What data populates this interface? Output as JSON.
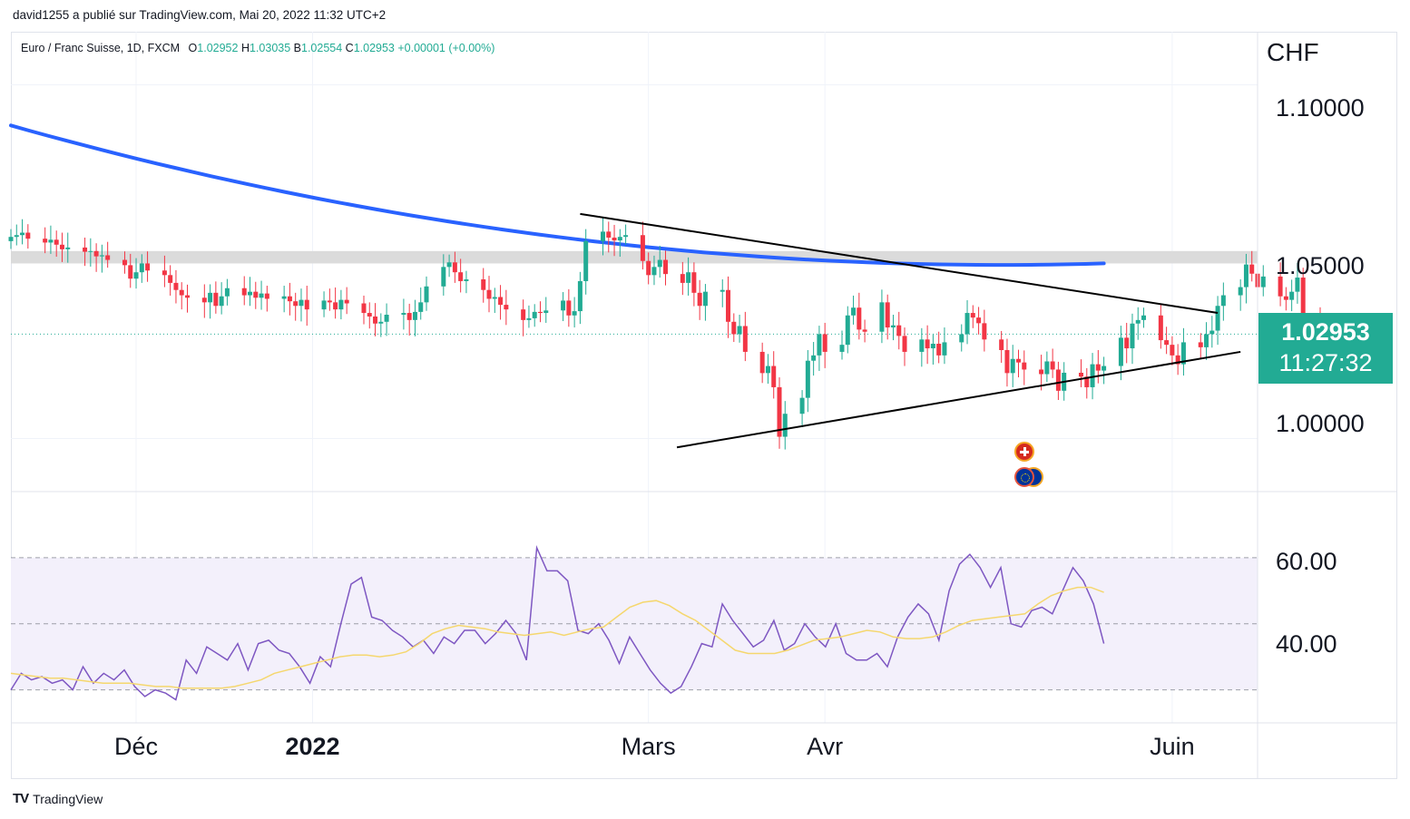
{
  "caption": "david1255 a publié sur TradingView.com, Mai 20, 2022 11:32 UTC+2",
  "ohlc": {
    "symbol": "Euro / Franc Suisse, 1D, FXCM",
    "o_label": "O",
    "o_value": "1.02952",
    "h_label": "H",
    "h_value": "1.03035",
    "b_label": "B",
    "b_value": "1.02554",
    "c_label": "C",
    "c_value": "1.02953",
    "change": "+0.00001 (+0.00%)"
  },
  "currency": "CHF",
  "price_badge": {
    "price": "1.02953",
    "countdown": "11:27:32"
  },
  "brand": {
    "logo": "TV",
    "name": "TradingView"
  },
  "flags": [
    "swiss-flag-icon",
    "eu-flag-icon"
  ],
  "colors": {
    "up": "#22ab94",
    "down": "#f23645",
    "ma": "#2962ff",
    "rsi": "#7e57c2",
    "rsi_ma": "#f5d76e",
    "band": "#f3f0fb"
  },
  "chart_data": [
    {
      "type": "candlestick",
      "symbol": "EURCHF",
      "interval": "1D",
      "ylim": [
        0.985,
        1.115
      ],
      "y_ticks": [
        1.0,
        1.05,
        1.1
      ],
      "y_tick_labels": [
        "1.00000",
        "1.05000",
        "1.10000"
      ],
      "x_labels": [
        "Déc",
        "2022",
        "Mars",
        "Avr",
        "Juin"
      ],
      "x_label_dates": [
        "2021-12-01",
        "2022-01-01",
        "2022-03-01",
        "2022-04-01",
        "2022-06-01"
      ],
      "start_date": "2021-11-09",
      "x_end_date": "2022-06-16",
      "last_price": 1.02953,
      "resistance_zone": [
        1.0495,
        1.053
      ],
      "close": [
        1.057,
        1.0575,
        1.0582,
        1.0565,
        1.0554,
        1.0562,
        1.0548,
        1.0535,
        1.054,
        1.0528,
        1.053,
        1.0515,
        1.0518,
        1.0505,
        1.049,
        1.0452,
        1.047,
        1.0495,
        1.0475,
        1.0462,
        1.044,
        1.042,
        1.0405,
        1.0398,
        1.0385,
        1.0412,
        1.0375,
        1.0402,
        1.0425,
        1.0405,
        1.0415,
        1.0398,
        1.041,
        1.0395,
        1.0402,
        1.0388,
        1.0375,
        1.0392,
        1.0365,
        1.039,
        1.0385,
        1.0365,
        1.0392,
        1.0382,
        1.0355,
        1.0345,
        1.0325,
        1.033,
        1.035,
        1.0355,
        1.0335,
        1.0358,
        1.0385,
        1.043,
        1.0485,
        1.0498,
        1.047,
        1.0445,
        1.045,
        1.042,
        1.0395,
        1.04,
        1.0378,
        1.0365,
        1.0335,
        1.034,
        1.0358,
        1.0355,
        1.0362,
        1.039,
        1.0348,
        1.036,
        1.0445,
        1.0558,
        1.0585,
        1.0568,
        1.056,
        1.057,
        1.0575,
        1.0502,
        1.0462,
        1.0485,
        1.0505,
        1.0465,
        1.044,
        1.047,
        1.0412,
        1.0375,
        1.0415,
        1.042,
        1.033,
        1.0295,
        1.0318,
        1.0245,
        1.0185,
        1.0205,
        1.0145,
        1.0005,
        1.007,
        1.0115,
        1.022,
        1.0235,
        1.0295,
        1.0245,
        1.0265,
        1.0348,
        1.037,
        1.0308,
        1.0302,
        1.0385,
        1.0314,
        1.032,
        1.029,
        1.0245,
        1.028,
        1.0255,
        1.0268,
        1.0235,
        1.0272,
        1.0295,
        1.0355,
        1.0342,
        1.0326,
        1.028,
        1.025,
        1.0185,
        1.0225,
        1.0215,
        1.0195,
        1.0182,
        1.0218,
        1.0195,
        1.0135,
        1.0186,
        1.0175,
        1.0145,
        1.021,
        1.0192,
        1.0205,
        1.0285,
        1.0255,
        1.0325,
        1.0335,
        1.0348,
        1.0278,
        1.0265,
        1.0235,
        1.021,
        1.0272,
        1.0258,
        1.0295,
        1.0305,
        1.0375,
        1.0405,
        1.0428,
        1.0492,
        1.0466,
        1.0428,
        1.0458,
        1.0402,
        1.0392,
        1.0415,
        1.0455,
        1.0335,
        1.029,
        1.0295
      ]
    },
    {
      "type": "line",
      "name": "",
      "start_date": "2021-11-09",
      "end_date": "2022-05-20",
      "values": [
        1.0885,
        1.057,
        1.0495
      ]
    },
    {
      "type": "line",
      "start_date": "2022-02-17",
      "end_date": "2022-06-09",
      "values": [
        1.0635,
        1.0355
      ]
    },
    {
      "type": "line",
      "start_date": "2022-03-06",
      "end_date": "2022-06-13",
      "values": [
        0.9975,
        1.0245
      ]
    },
    {
      "type": "line",
      "name": "RSI",
      "ylim": [
        20,
        90
      ],
      "y_ticks": [
        40,
        60
      ],
      "y_tick_labels": [
        "40.00",
        "60.00"
      ],
      "levels": [
        30,
        50,
        70
      ],
      "start_date": "2021-11-09",
      "rsi": [
        30,
        35,
        33,
        34,
        32,
        33,
        30,
        37,
        32,
        35,
        33,
        36,
        31,
        28,
        30,
        29,
        27,
        39,
        35,
        43,
        41,
        39,
        44,
        36,
        44,
        45,
        42,
        41,
        37,
        32,
        40,
        37,
        50,
        62,
        64,
        52,
        51,
        48,
        46,
        43,
        45,
        41,
        46,
        44,
        48,
        48,
        44,
        47,
        51,
        47,
        39,
        73,
        66,
        66,
        63,
        48,
        47,
        50,
        45,
        38,
        46,
        41,
        36,
        32,
        29,
        31,
        37,
        44,
        43,
        56,
        51,
        47,
        43,
        45,
        51,
        42,
        44,
        50,
        46,
        43,
        50,
        41,
        39,
        39,
        41,
        37,
        46,
        52,
        56,
        53,
        45,
        60,
        68,
        71,
        67,
        61,
        67,
        50,
        49,
        54,
        55,
        53,
        60,
        67,
        63,
        56,
        44
      ],
      "rsi_ma": [
        35,
        34.5,
        34,
        33.5,
        33.5,
        33,
        32.5,
        32,
        32,
        32,
        31.5,
        31,
        31,
        30.5,
        30.5,
        30.5,
        30.5,
        31,
        32,
        33,
        35,
        36,
        37,
        38,
        39,
        40,
        40.5,
        40.5,
        40,
        40.5,
        41.5,
        44,
        47,
        48.5,
        49.5,
        49,
        48.5,
        47.5,
        47,
        46.5,
        47,
        47.5,
        46.5,
        47.5,
        48.5,
        49,
        52,
        55,
        56.5,
        57,
        55.5,
        53,
        51,
        48,
        45,
        42,
        41,
        41,
        41,
        42,
        43.5,
        45,
        45.5,
        46,
        47,
        48,
        47.5,
        46,
        45.5,
        45.5,
        46,
        47.5,
        49.5,
        51,
        51.5,
        52,
        52.5,
        53,
        56,
        58.5,
        60,
        61,
        61,
        59.5
      ]
    }
  ]
}
